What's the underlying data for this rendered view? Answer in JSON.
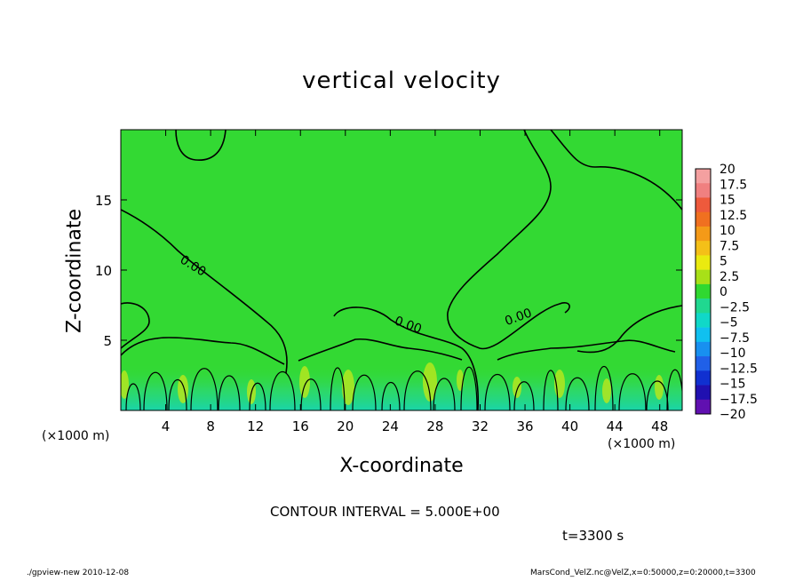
{
  "chart_data": {
    "type": "heatmap",
    "title": "vertical velocity",
    "xlabel": "X-coordinate",
    "ylabel": "Z-coordinate",
    "x_unit_left": "(×1000 m)",
    "x_unit_right": "(×1000 m)",
    "xlim": [
      0,
      50
    ],
    "ylim": [
      0,
      20
    ],
    "x_ticks": [
      4,
      8,
      12,
      16,
      20,
      24,
      28,
      32,
      36,
      40,
      44,
      48
    ],
    "x_tick_labels": [
      "4",
      "8",
      "12",
      "16",
      "20",
      "24",
      "28",
      "32",
      "36",
      "40",
      "44",
      "48"
    ],
    "y_ticks": [
      5,
      10,
      15
    ],
    "y_tick_labels": [
      "5",
      "10",
      "15"
    ],
    "contour_labels": [
      "0.00",
      "0.00",
      "0.00"
    ],
    "colorbar": {
      "levels": [
        20,
        17.5,
        15,
        12.5,
        10,
        7.5,
        5,
        2.5,
        0,
        -2.5,
        -5,
        -7.5,
        -10,
        -12.5,
        -15,
        -17.5,
        -20
      ],
      "labels": [
        "20",
        "17.5",
        "15",
        "12.5",
        "10",
        "7.5",
        "5",
        "2.5",
        "0",
        "−2.5",
        "−5",
        "−7.5",
        "−10",
        "−12.5",
        "−15",
        "−17.5",
        "−20"
      ],
      "colors": [
        "#f4a0a0",
        "#f08080",
        "#ee5a3c",
        "#f07020",
        "#f49a18",
        "#f4c018",
        "#eaea10",
        "#a8e018",
        "#30d830",
        "#20d890",
        "#10d8c8",
        "#10c0f0",
        "#1890f0",
        "#2060e8",
        "#1030d0",
        "#2010b0",
        "#6010b0"
      ]
    },
    "field_color": "#33d933"
  },
  "annotations": {
    "contour_interval": "CONTOUR INTERVAL = 5.000E+00",
    "time": "t=3300 s"
  },
  "footer": {
    "left": "./gpview-new   2010-12-08",
    "right": "MarsCond_VelZ.nc@VelZ,x=0:50000,z=0:20000,t=3300"
  }
}
